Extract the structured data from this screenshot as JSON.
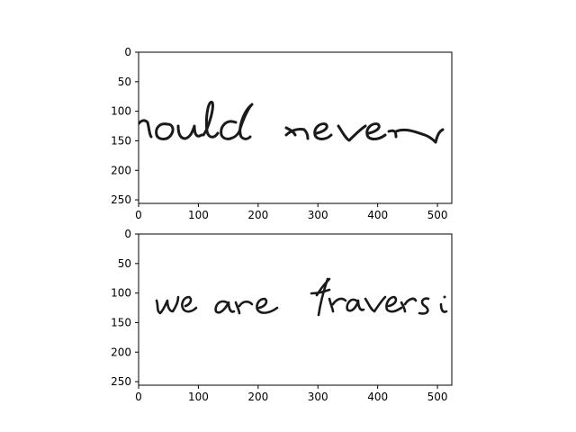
{
  "chart_data": [
    {
      "type": "image",
      "title": "",
      "xlabel": "",
      "ylabel": "",
      "xlim": [
        0,
        524
      ],
      "ylim": [
        256,
        0
      ],
      "xticks": [
        0,
        100,
        200,
        300,
        400,
        500
      ],
      "yticks": [
        0,
        50,
        100,
        150,
        200,
        250
      ],
      "image_content": "handwritten text: \"would never\" (leading letter cut off at left edge)",
      "grid": false
    },
    {
      "type": "image",
      "title": "",
      "xlabel": "",
      "ylabel": "",
      "xlim": [
        0,
        524
      ],
      "ylim": [
        256,
        0
      ],
      "xticks": [
        0,
        100,
        200,
        300,
        400,
        500
      ],
      "yticks": [
        0,
        50,
        100,
        150,
        200,
        250
      ],
      "image_content": "handwritten text: \"we are traversi\" (cut off at right edge)",
      "grid": false
    }
  ],
  "colors": {
    "ink": "#1a1a1a",
    "axes": "#000000",
    "background": "#ffffff"
  }
}
